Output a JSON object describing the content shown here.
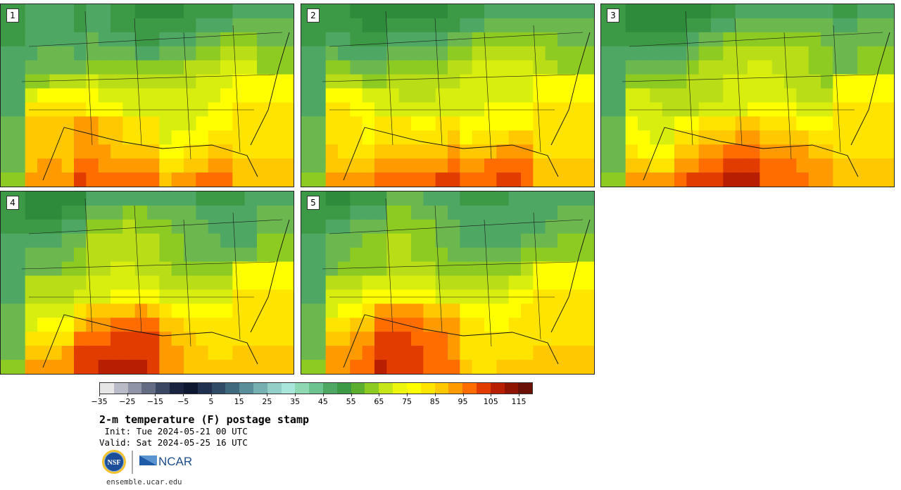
{
  "panels": [
    {
      "label": "1"
    },
    {
      "label": "2"
    },
    {
      "label": "3"
    },
    {
      "label": "4"
    },
    {
      "label": "5"
    }
  ],
  "colorbar": {
    "colors": [
      "#e6e6e6",
      "#b9bcc7",
      "#8f95a6",
      "#646c84",
      "#3b4662",
      "#1a2440",
      "#0d1830",
      "#20304f",
      "#2f4b66",
      "#3f6a7d",
      "#5a8e98",
      "#77b0b0",
      "#93cfc7",
      "#a8e6da",
      "#8fd8b4",
      "#6cc38f",
      "#4ea864",
      "#3c9a46",
      "#5cae2e",
      "#8ecb22",
      "#c6e61a",
      "#ecf60e",
      "#ffff00",
      "#ffe400",
      "#ffc800",
      "#ff9a00",
      "#ff6c00",
      "#e23c00",
      "#b81e00",
      "#8e1400",
      "#6a1006"
    ],
    "tick_labels": [
      "−35",
      "−25",
      "−15",
      "−5",
      "5",
      "15",
      "25",
      "35",
      "45",
      "55",
      "65",
      "75",
      "85",
      "95",
      "105",
      "115"
    ]
  },
  "title": "2-m temperature (F) postage stamp",
  "init": " Init: Tue 2024-05-21 00 UTC",
  "valid": "Valid: Sat 2024-05-25 16 UTC",
  "logos": {
    "nsf": "NSF",
    "ncar": "NCAR"
  },
  "url": "ensemble.ucar.edu"
}
